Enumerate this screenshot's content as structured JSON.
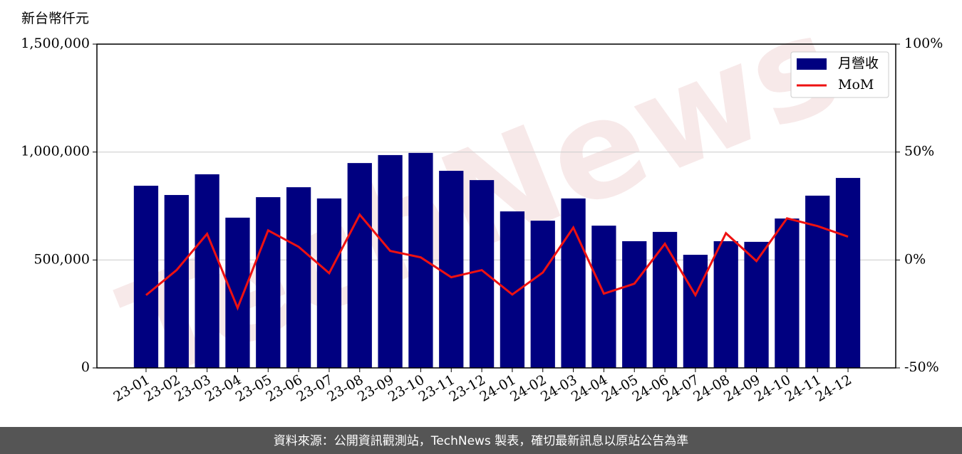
{
  "chart_data": {
    "type": "bar_line",
    "y_axis_label": "新台幣仟元",
    "watermark": "TechNews",
    "source": "資料來源：公開資訊觀測站，TechNews 製表，確切最新訊息以原站公告為準",
    "categories": [
      "23-01",
      "23-02",
      "23-03",
      "23-04",
      "23-05",
      "23-06",
      "23-07",
      "23-08",
      "23-09",
      "23-10",
      "23-11",
      "23-12",
      "24-01",
      "24-02",
      "24-03",
      "24-04",
      "24-05",
      "24-06",
      "24-07",
      "24-08",
      "24-09",
      "24-10",
      "24-11",
      "24-12"
    ],
    "series": [
      {
        "name": "月營收",
        "type": "bar",
        "color": "#000080",
        "values": [
          844000,
          801000,
          897000,
          696000,
          791000,
          837000,
          785000,
          949000,
          986000,
          996000,
          913000,
          870000,
          725000,
          682000,
          785000,
          659000,
          587000,
          630000,
          524000,
          587000,
          584000,
          692000,
          798000,
          880000
        ]
      },
      {
        "name": "MoM",
        "type": "line",
        "axis": "y2",
        "color": "#ee1111",
        "values": [
          -16.3,
          -4.7,
          12.1,
          -22.2,
          13.7,
          6.1,
          -6.1,
          21.0,
          4.2,
          1.2,
          -8.0,
          -4.7,
          -16.0,
          -5.8,
          15.0,
          -15.6,
          -11.0,
          7.5,
          -16.3,
          12.4,
          -0.5,
          19.3,
          15.7,
          10.8
        ]
      }
    ],
    "ylim": [
      0,
      1500000
    ],
    "yticks": [
      0,
      {
        "value": 500000,
        "label": "500,000"
      },
      {
        "value": 1000000,
        "label": "1,000,000"
      },
      {
        "value": 1500000,
        "label": "1,500,000"
      }
    ],
    "y2lim": [
      -50,
      100
    ],
    "y2ticks": [
      {
        "value": -50,
        "label": "-50%"
      },
      {
        "value": 0,
        "label": "0%"
      },
      {
        "value": 50,
        "label": "50%"
      },
      {
        "value": 100,
        "label": "100%"
      }
    ],
    "grid": true,
    "legend": "upper right"
  }
}
